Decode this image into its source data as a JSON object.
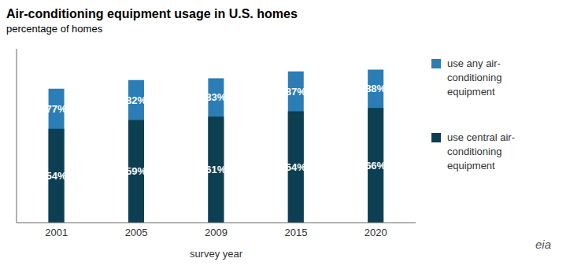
{
  "chart_data": {
    "type": "bar",
    "title": "Air-conditioning equipment usage in U.S. homes",
    "subtitle": "percentage of homes",
    "x_label": "survey year",
    "categories": [
      "2001",
      "2005",
      "2009",
      "2015",
      "2020"
    ],
    "series": [
      {
        "name": "use central air-conditioning equipment",
        "color": "#0d3f52",
        "values": [
          54,
          59,
          61,
          64,
          66
        ],
        "value_labels": [
          "54%",
          "59%",
          "61%",
          "64%",
          "66%"
        ]
      },
      {
        "name": "use any air-conditioning equipment",
        "color": "#2b7db5",
        "values": [
          77,
          82,
          83,
          87,
          88
        ],
        "value_labels": [
          "77%",
          "82%",
          "83%",
          "87%",
          "88%"
        ]
      }
    ],
    "ylim": [
      0,
      100
    ],
    "grid": false,
    "legend": "right",
    "data_labels": true,
    "tick_labels": "x",
    "annotations": [
      "eia"
    ]
  }
}
